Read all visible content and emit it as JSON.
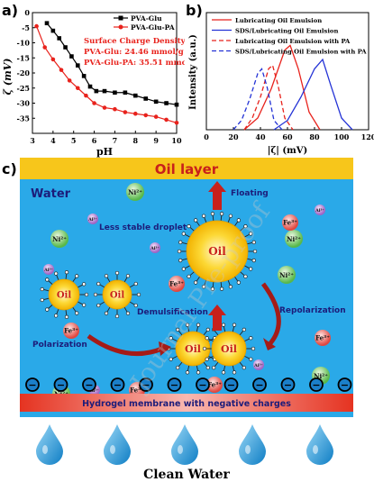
{
  "panels": {
    "a": "a)",
    "b": "b)",
    "c": "c)"
  },
  "chart_data": [
    {
      "type": "line",
      "panel": "a",
      "xlabel": "pH",
      "ylabel": "ζ (mV)",
      "xlim": [
        3,
        10
      ],
      "ylim": [
        -40,
        0
      ],
      "xticks": [
        3,
        4,
        5,
        6,
        7,
        8,
        9,
        10
      ],
      "yticks": [
        0,
        -5,
        -10,
        -15,
        -20,
        -25,
        -30,
        -35
      ],
      "legend_position": "top-right",
      "annotation": {
        "title": "Surface Charge Density",
        "line1": "PVA-Glu: 24.46 mmol/g",
        "line2": "PVA-Glu-PA: 35.51 mmol/g"
      },
      "series": [
        {
          "name": "PVA-Glu",
          "color": "#000000",
          "marker": "square",
          "x": [
            3.7,
            4.0,
            4.3,
            4.6,
            4.9,
            5.2,
            5.5,
            5.8,
            6.1,
            6.5,
            7.0,
            7.5,
            8.0,
            8.5,
            9.0,
            9.5,
            10.0
          ],
          "y": [
            -3.5,
            -6.0,
            -8.5,
            -11.5,
            -14.5,
            -17.5,
            -21.0,
            -24.5,
            -26.0,
            -26.0,
            -26.5,
            -26.5,
            -27.5,
            -28.5,
            -29.5,
            -30.0,
            -30.5
          ]
        },
        {
          "name": "PVA-Glu-PA",
          "color": "#e8221c",
          "marker": "circle",
          "x": [
            3.2,
            3.6,
            4.0,
            4.4,
            4.8,
            5.2,
            5.6,
            6.0,
            6.5,
            7.0,
            7.5,
            8.0,
            8.5,
            9.0,
            9.5,
            10.0
          ],
          "y": [
            -4.5,
            -11.5,
            -15.5,
            -19.0,
            -22.5,
            -25.0,
            -27.5,
            -30.0,
            -31.5,
            -32.0,
            -33.0,
            -33.5,
            -34.0,
            -34.5,
            -35.5,
            -36.5
          ]
        }
      ]
    },
    {
      "type": "line",
      "panel": "b",
      "xlabel": "|ζ| (mV)",
      "ylabel": "Intensity (a.u.)",
      "xlim": [
        0,
        120
      ],
      "xticks": [
        0,
        20,
        40,
        60,
        80,
        100,
        120
      ],
      "legend_position": "top",
      "series": [
        {
          "name": "Lubricating Oil Emulsion",
          "color": "#e8221c",
          "dash": false,
          "x": [
            28,
            38,
            48,
            58,
            62,
            68,
            76,
            84
          ],
          "y": [
            0,
            10,
            35,
            68,
            72,
            52,
            15,
            0
          ]
        },
        {
          "name": "SDS/Lubricating Oil Emulsion",
          "color": "#2433d6",
          "dash": false,
          "x": [
            50,
            60,
            70,
            80,
            86,
            92,
            100,
            108
          ],
          "y": [
            0,
            8,
            28,
            52,
            60,
            38,
            10,
            0
          ]
        },
        {
          "name": "Lubricating Oil Emulsion with PA",
          "color": "#e8221c",
          "dash": true,
          "x": [
            28,
            34,
            40,
            46,
            49,
            53,
            58,
            64
          ],
          "y": [
            0,
            10,
            28,
            52,
            55,
            38,
            10,
            0
          ]
        },
        {
          "name": "SDS/Lubricating Oil Emulsion with PA",
          "color": "#2433d6",
          "dash": true,
          "x": [
            20,
            26,
            32,
            38,
            41,
            45,
            50,
            56
          ],
          "y": [
            0,
            8,
            26,
            48,
            52,
            36,
            8,
            0
          ]
        }
      ]
    }
  ],
  "diagram": {
    "oil_layer": "Oil layer",
    "water": "Water",
    "floating": "Floating",
    "less_stable": "Less stable droplet",
    "oil": "Oil",
    "demulsification": "Demulsification",
    "repolarization": "Repolarization",
    "polarization": "Polarization",
    "membrane": "Hydrogel membrane with negative charges",
    "clean_water": "Clean Water",
    "ion_ni": "Ni²⁺",
    "ion_fe": "Fe³⁺",
    "ion_al": "Al³⁺",
    "minus": "−",
    "watermark": "Journal Pre-proof",
    "colors": {
      "water": "#2aa9e8",
      "oil_layer": "#f7c61b",
      "arrow": "#c8201b",
      "membrane": "#d9281e"
    }
  }
}
